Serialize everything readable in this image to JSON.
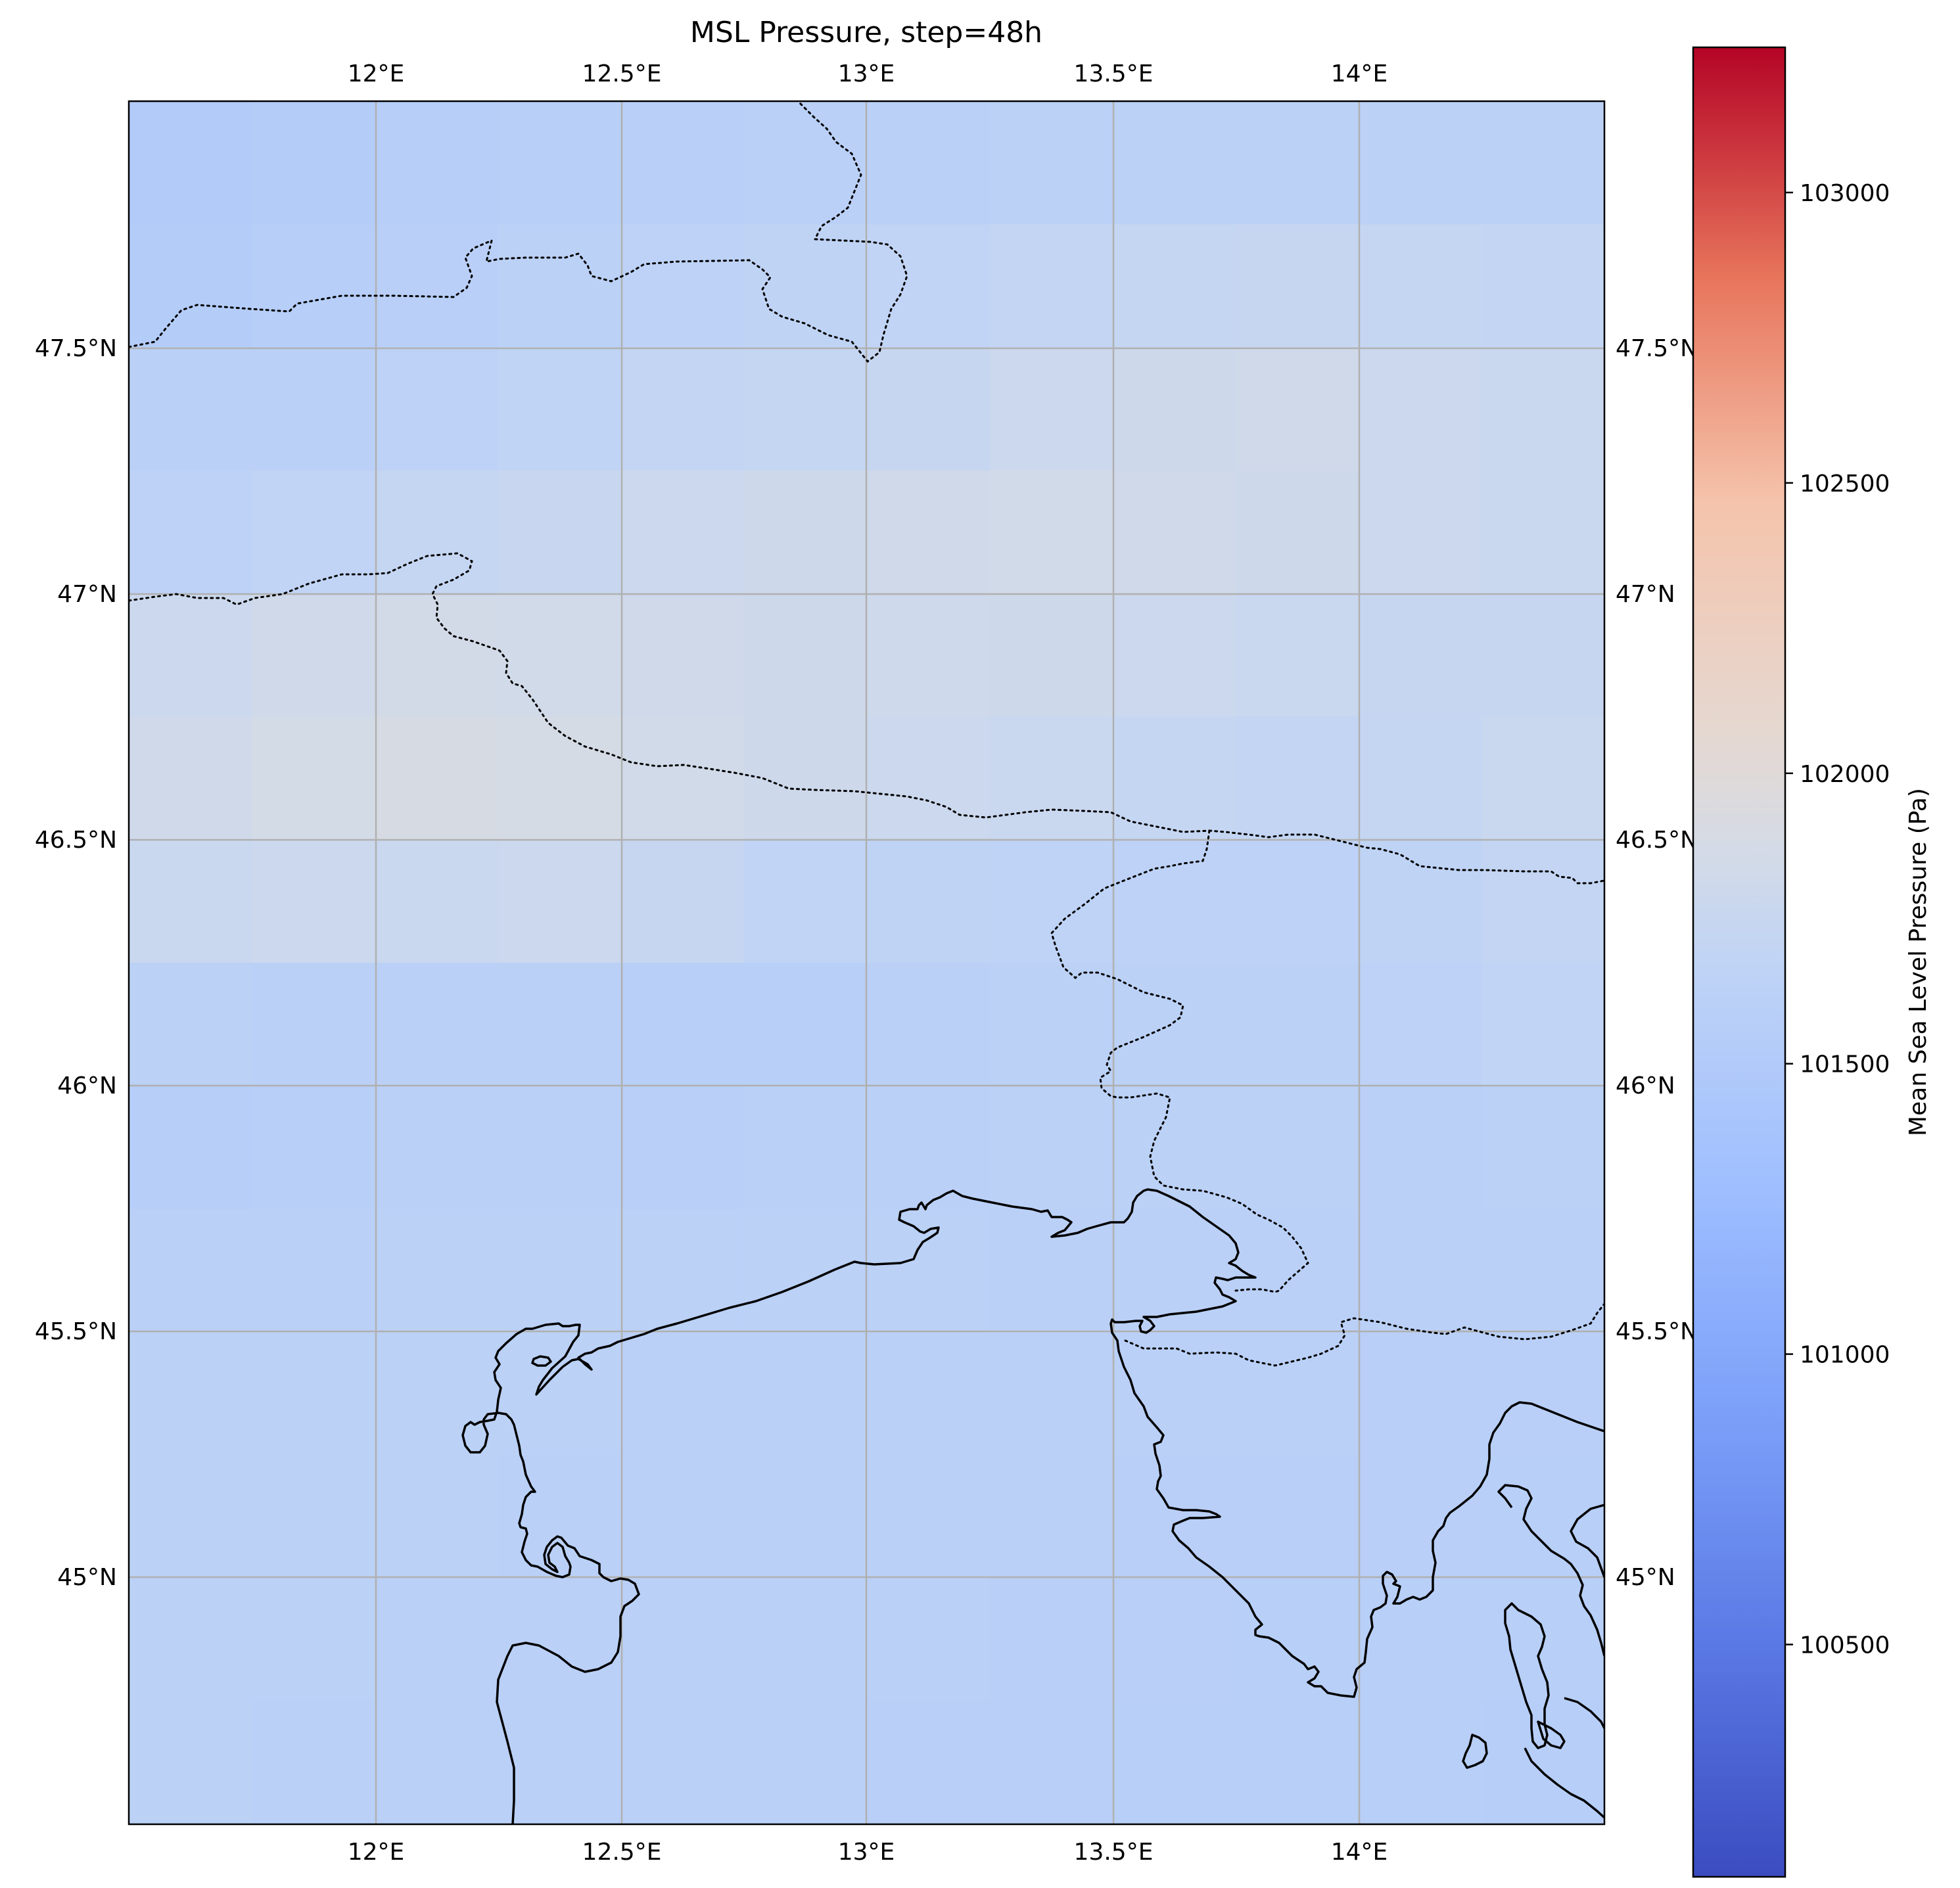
{
  "title": "MSL Pressure, step=48h",
  "map": {
    "lon_range": [
      11.5,
      14.5
    ],
    "lat_range": [
      44.5,
      48.0
    ],
    "lon_ticks": [
      {
        "value": 12.0,
        "label": "12°E"
      },
      {
        "value": 12.5,
        "label": "12.5°E"
      },
      {
        "value": 13.0,
        "label": "13°E"
      },
      {
        "value": 13.5,
        "label": "13.5°E"
      },
      {
        "value": 14.0,
        "label": "14°E"
      }
    ],
    "lat_ticks": [
      {
        "value": 47.5,
        "label": "47.5°N"
      },
      {
        "value": 47.0,
        "label": "47°N"
      },
      {
        "value": 46.5,
        "label": "46.5°N"
      },
      {
        "value": 46.0,
        "label": "46°N"
      },
      {
        "value": 45.5,
        "label": "45.5°N"
      },
      {
        "value": 45.0,
        "label": "45°N"
      }
    ],
    "gridlines": true,
    "features": [
      "coastline",
      "country borders (dotted)"
    ]
  },
  "colorbar": {
    "label": "Mean Sea Level Pressure (Pa)",
    "colormap": "coolwarm",
    "range": [
      100100,
      103250
    ],
    "ticks": [
      {
        "value": 103000,
        "label": "103000"
      },
      {
        "value": 102500,
        "label": "102500"
      },
      {
        "value": 102000,
        "label": "102000"
      },
      {
        "value": 101500,
        "label": "101500"
      },
      {
        "value": 101000,
        "label": "101000"
      },
      {
        "value": 100500,
        "label": "100500"
      }
    ]
  },
  "field": {
    "description_free": true,
    "lat_bands": [
      {
        "lat": [
          47.75,
          48.0
        ],
        "values": [
          101520,
          101540,
          101560,
          101580,
          101590,
          101600,
          101610,
          101620,
          101620,
          101630,
          101630,
          101630
        ]
      },
      {
        "lat": [
          47.5,
          47.75
        ],
        "values": [
          101540,
          101560,
          101590,
          101620,
          101640,
          101660,
          101680,
          101700,
          101720,
          101740,
          101720,
          101700
        ]
      },
      {
        "lat": [
          47.25,
          47.5
        ],
        "values": [
          101600,
          101610,
          101640,
          101670,
          101700,
          101720,
          101740,
          101780,
          101800,
          101820,
          101780,
          101760
        ]
      },
      {
        "lat": [
          47.0,
          47.25
        ],
        "values": [
          101640,
          101680,
          101720,
          101750,
          101780,
          101800,
          101820,
          101840,
          101820,
          101800,
          101780,
          101760
        ]
      },
      {
        "lat": [
          46.75,
          47.0
        ],
        "values": [
          101780,
          101820,
          101850,
          101840,
          101820,
          101800,
          101810,
          101800,
          101780,
          101760,
          101740,
          101740
        ]
      },
      {
        "lat": [
          46.5,
          46.75
        ],
        "values": [
          101820,
          101860,
          101900,
          101880,
          101840,
          101800,
          101780,
          101760,
          101720,
          101700,
          101720,
          101760
        ]
      },
      {
        "lat": [
          46.25,
          46.5
        ],
        "values": [
          101760,
          101780,
          101760,
          101780,
          101740,
          101680,
          101660,
          101650,
          101640,
          101640,
          101660,
          101700
        ]
      },
      {
        "lat": [
          46.0,
          46.25
        ],
        "values": [
          101620,
          101600,
          101600,
          101600,
          101580,
          101580,
          101600,
          101620,
          101620,
          101630,
          101640,
          101680
        ]
      },
      {
        "lat": [
          45.75,
          46.0
        ],
        "values": [
          101560,
          101580,
          101600,
          101600,
          101590,
          101600,
          101610,
          101620,
          101620,
          101620,
          101610,
          101620
        ]
      },
      {
        "lat": [
          45.5,
          45.75
        ],
        "values": [
          101600,
          101610,
          101620,
          101620,
          101620,
          101620,
          101620,
          101610,
          101610,
          101600,
          101600,
          101600
        ]
      },
      {
        "lat": [
          45.25,
          45.5
        ],
        "values": [
          101620,
          101620,
          101620,
          101620,
          101610,
          101610,
          101610,
          101600,
          101600,
          101600,
          101590,
          101590
        ]
      },
      {
        "lat": [
          45.0,
          45.25
        ],
        "values": [
          101620,
          101620,
          101620,
          101610,
          101610,
          101600,
          101600,
          101600,
          101590,
          101590,
          101590,
          101580
        ]
      },
      {
        "lat": [
          44.75,
          45.0
        ],
        "values": [
          101620,
          101620,
          101610,
          101610,
          101600,
          101600,
          101600,
          101590,
          101590,
          101580,
          101580,
          101580
        ]
      },
      {
        "lat": [
          44.5,
          44.75
        ],
        "values": [
          101620,
          101610,
          101610,
          101600,
          101600,
          101600,
          101590,
          101590,
          101580,
          101580,
          101580,
          101570
        ]
      }
    ]
  }
}
